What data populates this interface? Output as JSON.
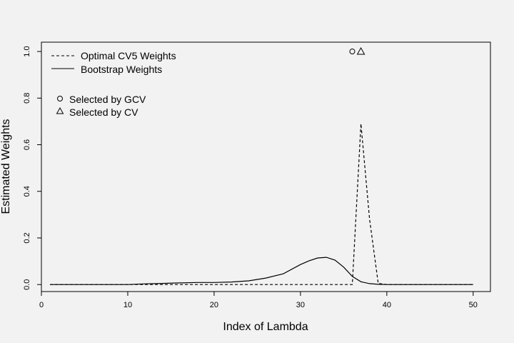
{
  "chart_data": {
    "type": "line",
    "title": "",
    "xlabel": "Index of Lambda",
    "ylabel": "Estimated Weights",
    "xlim": [
      0,
      52
    ],
    "ylim": [
      -0.03,
      1.04
    ],
    "xticks": [
      0,
      10,
      20,
      30,
      40,
      50
    ],
    "yticks": [
      0.0,
      0.2,
      0.4,
      0.6,
      0.8,
      1.0
    ],
    "ytick_labels": [
      "0.0",
      "0.2",
      "0.4",
      "0.6",
      "0.8",
      "1.0"
    ],
    "grid": false,
    "legend_position": "top-left",
    "series": [
      {
        "name": "Optimal CV5 Weights",
        "line_style": "dashed",
        "color": "#000000",
        "x": [
          1,
          36,
          37,
          38,
          39,
          40,
          50
        ],
        "y": [
          0,
          0,
          0.69,
          0.28,
          0.005,
          0,
          0
        ]
      },
      {
        "name": "Bootstrap Weights",
        "line_style": "solid",
        "color": "#000000",
        "x": [
          1,
          10,
          12,
          14,
          16,
          18,
          20,
          22,
          24,
          26,
          28,
          30,
          31,
          32,
          33,
          34,
          35,
          36,
          37,
          38,
          39,
          40,
          50
        ],
        "y": [
          0,
          0,
          0.003,
          0.005,
          0.007,
          0.009,
          0.009,
          0.011,
          0.016,
          0.028,
          0.046,
          0.086,
          0.102,
          0.114,
          0.117,
          0.105,
          0.075,
          0.035,
          0.012,
          0.004,
          0.001,
          0,
          0
        ]
      }
    ],
    "markers": [
      {
        "name": "Selected by GCV",
        "symbol": "circle",
        "x": 36,
        "y": 1.0
      },
      {
        "name": "Selected by CV",
        "symbol": "triangle",
        "x": 37,
        "y": 1.0
      }
    ]
  }
}
